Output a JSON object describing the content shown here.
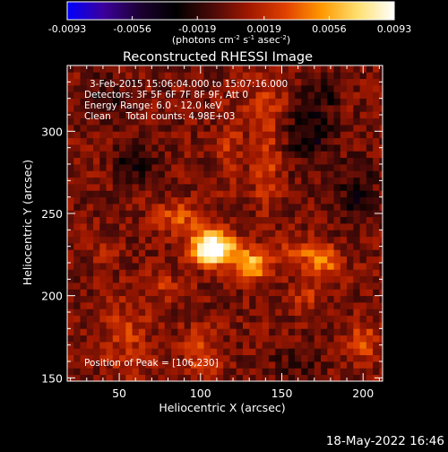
{
  "chart_data": {
    "type": "heatmap",
    "title": "Reconstructed RHESSI Image",
    "xlabel": "Heliocentric X (arcsec)",
    "ylabel": "Heliocentric Y (arcsec)",
    "xlim": [
      18,
      212
    ],
    "ylim": [
      148,
      340
    ],
    "x_ticks": [
      50,
      100,
      150,
      200
    ],
    "y_ticks": [
      150,
      200,
      250,
      300
    ],
    "colorbar": {
      "min": -0.0093,
      "max": 0.0093,
      "ticks": [
        "-0.0093",
        "-0.0056",
        "-0.0019",
        "0.0019",
        "0.0056",
        "0.0093"
      ],
      "unit_parts": [
        "(photons cm",
        "-2",
        " s",
        "-1",
        " asec",
        "-2",
        ")"
      ],
      "colormap": [
        "#0000ff",
        "#3c009c",
        "#1c0032",
        "#000000",
        "#4a0a08",
        "#a01800",
        "#e04000",
        "#ff9800",
        "#ffe070",
        "#ffffff"
      ]
    },
    "annotations": [
      "3-Feb-2015 15:06:04.000 to 15:07:16.000",
      "Detectors: 3F 5F 6F 7F 8F 9F, Att 0",
      "Energy Range: 6.0 - 12.0 keV",
      "Clean     Total counts: 4.98E+03"
    ],
    "peak_label": "Position of Peak = [106,230]",
    "peak": [
      106,
      230
    ],
    "sources": [
      {
        "x": 106,
        "y": 230,
        "sx": 9,
        "sy": 7,
        "amp": 0.0093
      },
      {
        "x": 132,
        "y": 217,
        "sx": 6,
        "sy": 5,
        "amp": 0.0055
      },
      {
        "x": 86,
        "y": 248,
        "sx": 10,
        "sy": 7,
        "amp": 0.0033
      },
      {
        "x": 120,
        "y": 225,
        "sx": 13,
        "sy": 6,
        "amp": 0.0035
      },
      {
        "x": 176,
        "y": 220,
        "sx": 8,
        "sy": 6,
        "amp": 0.004
      },
      {
        "x": 160,
        "y": 227,
        "sx": 12,
        "sy": 6,
        "amp": 0.0025
      },
      {
        "x": 140,
        "y": 280,
        "sx": 6,
        "sy": 18,
        "amp": 0.003
      },
      {
        "x": 118,
        "y": 290,
        "sx": 5,
        "sy": 16,
        "amp": 0.0022
      },
      {
        "x": 55,
        "y": 175,
        "sx": 10,
        "sy": 18,
        "amp": 0.0022
      },
      {
        "x": 100,
        "y": 165,
        "sx": 8,
        "sy": 12,
        "amp": 0.0026
      },
      {
        "x": 200,
        "y": 172,
        "sx": 8,
        "sy": 8,
        "amp": 0.003
      },
      {
        "x": 140,
        "y": 318,
        "sx": 10,
        "sy": 10,
        "amp": 0.002
      },
      {
        "x": 165,
        "y": 200,
        "sx": 6,
        "sy": 6,
        "amp": 0.0022
      },
      {
        "x": 80,
        "y": 205,
        "sx": 8,
        "sy": 6,
        "amp": 0.002
      },
      {
        "x": 40,
        "y": 228,
        "sx": 7,
        "sy": 6,
        "amp": 0.0014
      },
      {
        "x": 60,
        "y": 282,
        "sx": 9,
        "sy": 10,
        "amp": -0.0025
      },
      {
        "x": 168,
        "y": 300,
        "sx": 10,
        "sy": 14,
        "amp": -0.003
      },
      {
        "x": 196,
        "y": 262,
        "sx": 8,
        "sy": 14,
        "amp": -0.0025
      },
      {
        "x": 40,
        "y": 320,
        "sx": 10,
        "sy": 9,
        "amp": -0.0018
      },
      {
        "x": 176,
        "y": 325,
        "sx": 8,
        "sy": 7,
        "amp": -0.0018
      },
      {
        "x": 158,
        "y": 160,
        "sx": 10,
        "sy": 7,
        "amp": -0.0015
      }
    ]
  },
  "timestamp": "18-May-2022 16:46"
}
